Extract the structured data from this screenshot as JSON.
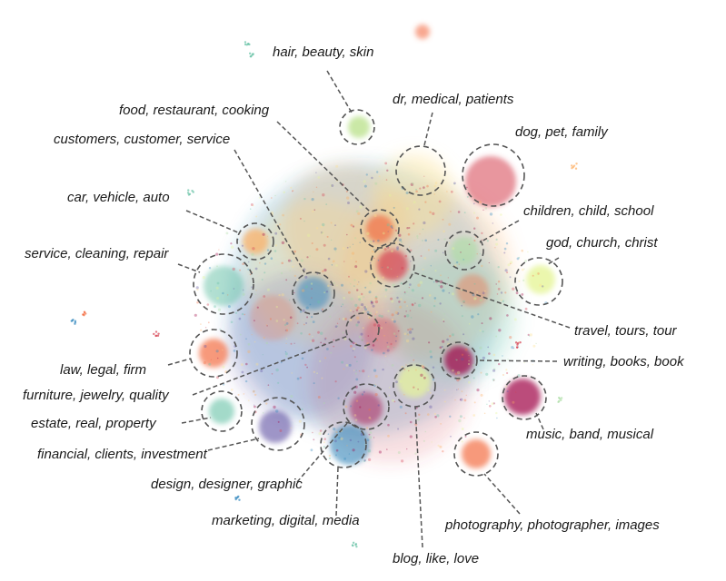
{
  "clusters": [
    {
      "id": "hair",
      "label": "hair, beauty, skin",
      "color": "#a6d96a"
    },
    {
      "id": "medical",
      "label": "dr, medical, patients",
      "color": "#fee08b"
    },
    {
      "id": "food",
      "label": "food, restaurant, cooking",
      "color": "#f46d43"
    },
    {
      "id": "dog",
      "label": "dog, pet, family",
      "color": "#d53e4f"
    },
    {
      "id": "customers",
      "label": "customers, customer, service",
      "color": "#3288bd"
    },
    {
      "id": "car",
      "label": "car, vehicle, auto",
      "color": "#f46d43"
    },
    {
      "id": "children",
      "label": "children, child, school",
      "color": "#abdda4"
    },
    {
      "id": "god",
      "label": "god, church, christ",
      "color": "#e6f598"
    },
    {
      "id": "cleaning",
      "label": "service, cleaning, repair",
      "color": "#66c2a5"
    },
    {
      "id": "travel",
      "label": "travel, tours, tour",
      "color": "#d53e4f"
    },
    {
      "id": "writing",
      "label": "writing, books, book",
      "color": "#9e0142"
    },
    {
      "id": "law",
      "label": "law, legal, firm",
      "color": "#f46d43"
    },
    {
      "id": "furniture",
      "label": "furniture, jewelry, quality",
      "color": "#c2185b"
    },
    {
      "id": "estate",
      "label": "estate, real, property",
      "color": "#66c2a5"
    },
    {
      "id": "music",
      "label": "music, band, musical",
      "color": "#c51b4a"
    },
    {
      "id": "financial",
      "label": "financial, clients, investment",
      "color": "#5e4fa2"
    },
    {
      "id": "design",
      "label": "design, designer, graphic",
      "color": "#b2182b"
    },
    {
      "id": "marketing",
      "label": "marketing, digital, media",
      "color": "#3288bd"
    },
    {
      "id": "photography",
      "label": "photography, photographer, images",
      "color": "#f46d43"
    },
    {
      "id": "blog",
      "label": "blog, like, love",
      "color": "#e6f598"
    }
  ]
}
